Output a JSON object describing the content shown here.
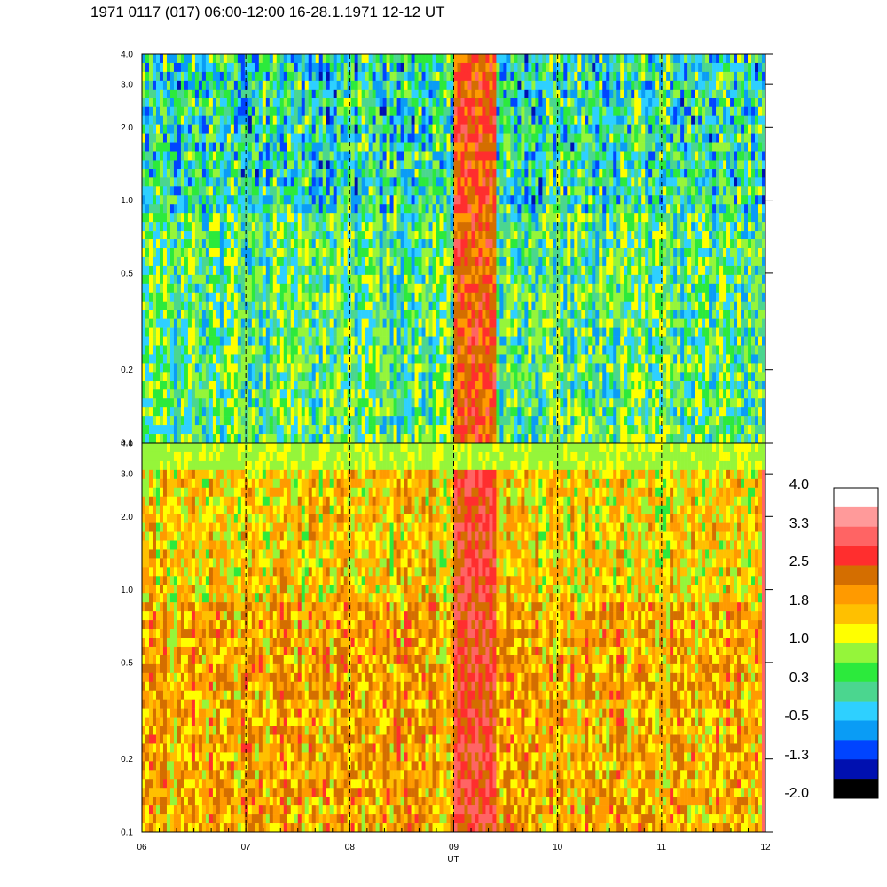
{
  "title": "1971 0117 (017) 06:00-12:00 16-28.1.1971  12-12 UT",
  "colors": {
    "palette": [
      "#000000",
      "#0010b0",
      "#0044ff",
      "#0a9cf5",
      "#2ed0ff",
      "#4bd68f",
      "#2cea3c",
      "#95f53a",
      "#ffff00",
      "#ffc000",
      "#ff9a00",
      "#d46e00",
      "#ff2e2e",
      "#ff6464",
      "#ff9a9a",
      "#ffffff"
    ]
  },
  "chart_data": {
    "type": "heatmap",
    "xlabel": "UT",
    "x_ticks": [
      "06",
      "07",
      "08",
      "09",
      "10",
      "11",
      "12"
    ],
    "xlim": [
      6,
      12
    ],
    "y_scale": "log",
    "ylim": [
      0.1,
      4.0
    ],
    "y_ticks": [
      "0.1",
      "0.2",
      "0.5",
      "1.0",
      "2.0",
      "3.0",
      "4.0"
    ],
    "y_tick_values": [
      0.1,
      0.2,
      0.5,
      1.0,
      2.0,
      3.0,
      4.0
    ],
    "vertical_dashed_lines_at": [
      7,
      8,
      9,
      10,
      11
    ],
    "panels": [
      {
        "name": "upper",
        "dominant_levels": [
          -0.5,
          0.3,
          1.0
        ],
        "burst_interval": [
          9.0,
          9.4
        ],
        "burst_level": 2.5
      },
      {
        "name": "lower",
        "dominant_levels": [
          1.0,
          1.8,
          2.1
        ],
        "burst_interval": [
          9.0,
          9.4
        ],
        "burst_level": 2.8
      }
    ],
    "colorbar": {
      "labels": [
        "4.0",
        "3.3",
        "2.5",
        "1.8",
        "1.0",
        "0.3",
        "-0.5",
        "-1.3",
        "-2.0"
      ],
      "min": -2.0,
      "max": 4.0
    }
  }
}
